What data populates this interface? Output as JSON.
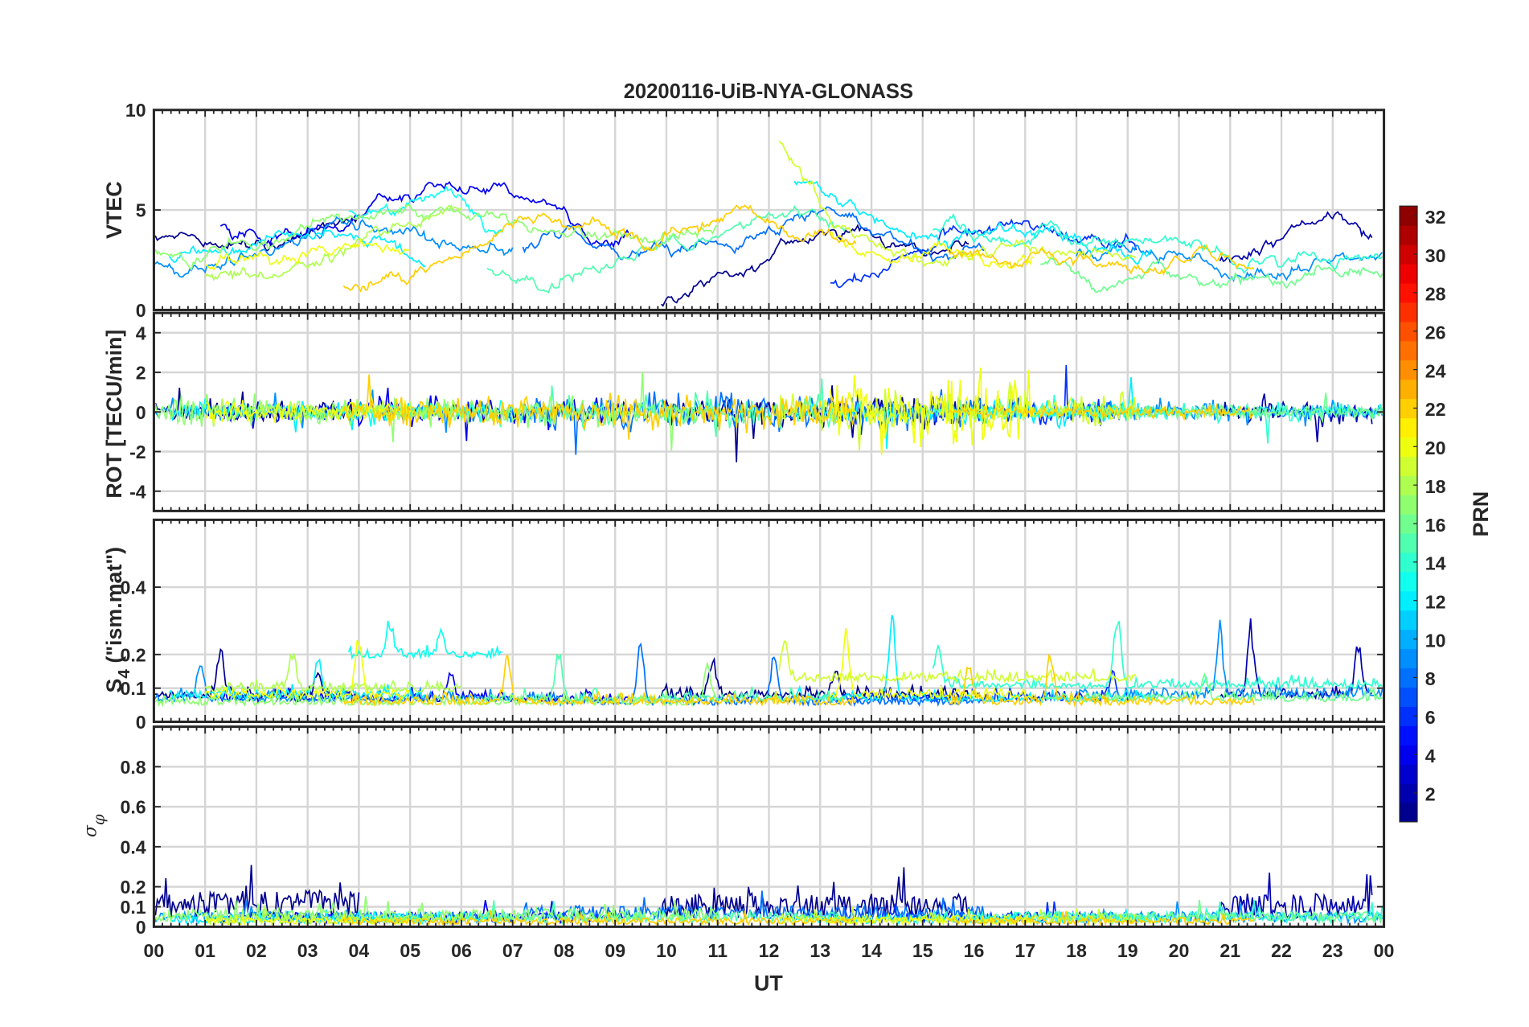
{
  "chart_data": {
    "type": "line",
    "title": "20200116-UiB-NYA-GLONASS",
    "xlabel": "UT",
    "xlim": [
      0,
      24
    ],
    "x_ticks": [
      "00",
      "01",
      "02",
      "03",
      "04",
      "05",
      "06",
      "07",
      "08",
      "09",
      "10",
      "11",
      "12",
      "13",
      "14",
      "15",
      "16",
      "17",
      "18",
      "19",
      "20",
      "21",
      "22",
      "23",
      "00"
    ],
    "colorbar": {
      "label": "PRN",
      "range": [
        1,
        32
      ],
      "colormap": "jet",
      "ticks": [
        "2",
        "4",
        "6",
        "8",
        "10",
        "12",
        "14",
        "16",
        "18",
        "20",
        "22",
        "24",
        "26",
        "28",
        "30",
        "32"
      ]
    },
    "panels": [
      {
        "id": "vtec",
        "ylabel": "VTEC",
        "ylim": [
          0,
          10
        ],
        "ticks": [
          0,
          5,
          10
        ],
        "tick_labels": [
          "0",
          "5",
          "10"
        ]
      },
      {
        "id": "rot",
        "ylabel": "ROT [TECU/min]",
        "ylim": [
          -5,
          5
        ],
        "ticks": [
          -4,
          -2,
          0,
          2,
          4
        ],
        "tick_labels": [
          "-4",
          "-2",
          "0",
          "2",
          "4"
        ]
      },
      {
        "id": "s4",
        "ylabel_main": "S",
        "ylabel_sub": "4",
        "ylabel_rest": " (\"ism.mat\")",
        "ylim": [
          0,
          0.6
        ],
        "ticks": [
          0,
          0.1,
          0.2,
          0.4
        ],
        "tick_labels": [
          "0",
          "0.1",
          "0.2",
          "0.4"
        ]
      },
      {
        "id": "sigma",
        "ylabel_main": "σ",
        "ylabel_sub": "φ",
        "ylim": [
          0,
          1
        ],
        "ticks": [
          0,
          0.1,
          0.2,
          0.4,
          0.6,
          0.8
        ],
        "tick_labels": [
          "0",
          "0.1",
          "0.2",
          "0.4",
          "0.6",
          "0.8"
        ]
      }
    ],
    "series": [
      {
        "prn": 1,
        "start": 0,
        "vtec_hourly": [
          3.8,
          3.3,
          3.0,
          3.9,
          4.6
        ],
        "rot_amp": 0.25,
        "s4_base": 0.07,
        "s4_spikes": [
          [
            1.3,
            0.22
          ],
          [
            3.2,
            0.15
          ]
        ],
        "sigma_base": 0.12
      },
      {
        "prn": 1,
        "start": 9.9,
        "vtec_hourly": [
          0.2,
          1.6,
          2.9,
          3.8,
          3.9,
          3.1,
          3.0
        ],
        "rot_amp": 0.35,
        "s4_base": 0.07,
        "s4_spikes": [
          [
            10.9,
            0.2
          ],
          [
            13.3,
            0.15
          ]
        ],
        "sigma_base": 0.11
      },
      {
        "prn": 2,
        "start": 20.8,
        "vtec_hourly": [
          2.4,
          3.4,
          4.3,
          4.0
        ],
        "rot_amp": 0.3,
        "s4_base": 0.07,
        "s4_spikes": [
          [
            21.4,
            0.3
          ],
          [
            23.5,
            0.25
          ]
        ],
        "sigma_base": 0.11
      },
      {
        "prn": 4,
        "start": 1.3,
        "vtec_hourly": [
          4.0,
          3.6,
          4.3,
          5.2,
          5.9,
          6.1,
          5.6,
          4.2,
          3.4
        ],
        "rot_amp": 0.3,
        "s4_base": 0.06,
        "s4_spikes": [
          [
            5.8,
            0.15
          ]
        ],
        "sigma_base": 0.05
      },
      {
        "prn": 6,
        "start": 13.2,
        "vtec_hourly": [
          1.4,
          2.0,
          3.0,
          4.3,
          4.6,
          3.8,
          3.0
        ],
        "rot_amp": 0.3,
        "s4_base": 0.06,
        "s4_spikes": [
          [
            18.7,
            0.15
          ]
        ],
        "sigma_base": 0.05
      },
      {
        "prn": 8,
        "start": 7.2,
        "vtec_hourly": [
          3.2,
          4.0,
          2.8,
          3.0,
          3.2,
          4.3,
          5.5,
          4.0,
          3.0,
          3.3
        ],
        "rot_amp": 0.45,
        "s4_base": 0.05,
        "s4_spikes": [
          [
            9.5,
            0.25
          ],
          [
            12.1,
            0.2
          ]
        ],
        "sigma_base": 0.07
      },
      {
        "prn": 9,
        "start": 0,
        "vtec_hourly": [
          2.3,
          2.1,
          2.7,
          4.2,
          4.4,
          4.0,
          3.2,
          3.3
        ],
        "rot_amp": 0.2,
        "s4_base": 0.06,
        "s4_spikes": [
          [
            0.9,
            0.19
          ]
        ],
        "sigma_base": 0.05
      },
      {
        "prn": 9,
        "start": 18,
        "vtec_hourly": [
          2.6,
          2.5,
          3.0,
          2.0,
          1.6,
          2.6,
          2.9
        ],
        "rot_amp": 0.2,
        "s4_base": 0.07,
        "s4_spikes": [
          [
            20.8,
            0.29
          ]
        ],
        "sigma_base": 0.05
      },
      {
        "prn": 12,
        "start": 0.3,
        "vtec_hourly": [
          2.6,
          2.8,
          3.3,
          4.2,
          3.5,
          2.3
        ],
        "rot_amp": 0.2,
        "s4_base": 0.07,
        "s4_spikes": [
          [
            3.2,
            0.2
          ]
        ],
        "sigma_base": 0.04
      },
      {
        "prn": 12,
        "start": 12.5,
        "vtec_hourly": [
          6.5,
          5.0,
          4.3,
          3.5,
          4.3,
          4.0,
          3.1,
          3.0
        ],
        "rot_amp": 0.3,
        "s4_base": 0.06,
        "s4_spikes": [
          [
            14.4,
            0.35
          ]
        ],
        "sigma_base": 0.04
      },
      {
        "prn": 13,
        "start": 3.8,
        "vtec_hourly": [
          4.8,
          5.6,
          5.5,
          4.0
        ],
        "rot_amp": 0.2,
        "s4_base": 0.19,
        "s4_spikes": [
          [
            4.6,
            0.3
          ],
          [
            5.6,
            0.28
          ]
        ],
        "sigma_base": 0.05
      },
      {
        "prn": 14,
        "start": 15.2,
        "vtec_hourly": [
          4.2,
          3.8,
          3.9,
          3.6,
          3.5,
          3.0,
          2.8,
          2.4,
          2.5,
          2.8
        ],
        "rot_amp": 0.2,
        "s4_base": 0.1,
        "s4_spikes": [
          [
            15.3,
            0.24
          ],
          [
            18.8,
            0.34
          ]
        ],
        "sigma_base": 0.05
      },
      {
        "prn": 15,
        "start": 6.5,
        "vtec_hourly": [
          2.1,
          1.3,
          2.0,
          3.0,
          3.4,
          4.2,
          4.8,
          4.5
        ],
        "rot_amp": 0.35,
        "s4_base": 0.06,
        "s4_spikes": [
          [
            7.9,
            0.22
          ]
        ],
        "sigma_base": 0.05
      },
      {
        "prn": 16,
        "start": 17.3,
        "vtec_hourly": [
          2.5,
          1.4,
          1.8,
          1.7,
          1.3,
          1.8,
          2.0,
          2.5
        ],
        "rot_amp": 0.15,
        "s4_base": 0.06,
        "s4_spikes": [
          [
            20.5,
            0.14
          ]
        ],
        "sigma_base": 0.05
      },
      {
        "prn": 17,
        "start": 0,
        "vtec_hourly": [
          3.0,
          2.8,
          3.6,
          4.4,
          4.8,
          5.2,
          5.0,
          4.5,
          3.6,
          3.2,
          3.5,
          4.0
        ],
        "rot_amp": 0.3,
        "s4_base": 0.05,
        "s4_spikes": [
          [
            10.8,
            0.18
          ]
        ],
        "sigma_base": 0.06
      },
      {
        "prn": 18,
        "start": 1.0,
        "vtec_hourly": [
          1.6,
          1.5,
          2.2,
          3.3,
          4.2,
          5.0
        ],
        "rot_amp": 0.25,
        "s4_base": 0.09,
        "s4_spikes": [
          [
            2.7,
            0.22
          ]
        ],
        "sigma_base": 0.04
      },
      {
        "prn": 19,
        "start": 12.2,
        "vtec_hourly": [
          8.5,
          5.0,
          2.9,
          2.2,
          3.0,
          3.4,
          2.6,
          2.5
        ],
        "rot_amp": 0.45,
        "s4_base": 0.12,
        "s4_spikes": [
          [
            12.3,
            0.25
          ]
        ],
        "sigma_base": 0.04
      },
      {
        "prn": 20,
        "start": 1.0,
        "vtec_hourly": [
          2.3,
          2.0,
          2.5,
          3.4,
          3.2
        ],
        "rot_amp": 0.25,
        "s4_base": 0.07,
        "s4_spikes": [
          [
            4.0,
            0.27
          ]
        ],
        "sigma_base": 0.03
      },
      {
        "prn": 20,
        "start": 13.2,
        "vtec_hourly": [
          3.6,
          2.5,
          3.2,
          2.8,
          2.5
        ],
        "rot_amp": 1.0,
        "s4_base": 0.07,
        "s4_spikes": [
          [
            13.5,
            0.28
          ]
        ],
        "sigma_base": 0.03
      },
      {
        "prn": 22,
        "start": 3.7,
        "vtec_hourly": [
          1.0,
          1.3,
          2.2,
          3.8,
          4.7,
          4.2,
          3.6,
          4.2,
          4.8,
          4.0,
          3.2
        ],
        "rot_amp": 0.4,
        "s4_base": 0.05,
        "s4_spikes": [
          [
            6.9,
            0.2
          ]
        ],
        "sigma_base": 0.03
      },
      {
        "prn": 22,
        "start": 15.5,
        "vtec_hourly": [
          3.0,
          2.5,
          3.0,
          2.4,
          2.0,
          2.6,
          2.3
        ],
        "rot_amp": 0.15,
        "s4_base": 0.05,
        "s4_spikes": [
          [
            17.5,
            0.22
          ],
          [
            15.9,
            0.18
          ]
        ],
        "sigma_base": 0.03
      }
    ]
  }
}
